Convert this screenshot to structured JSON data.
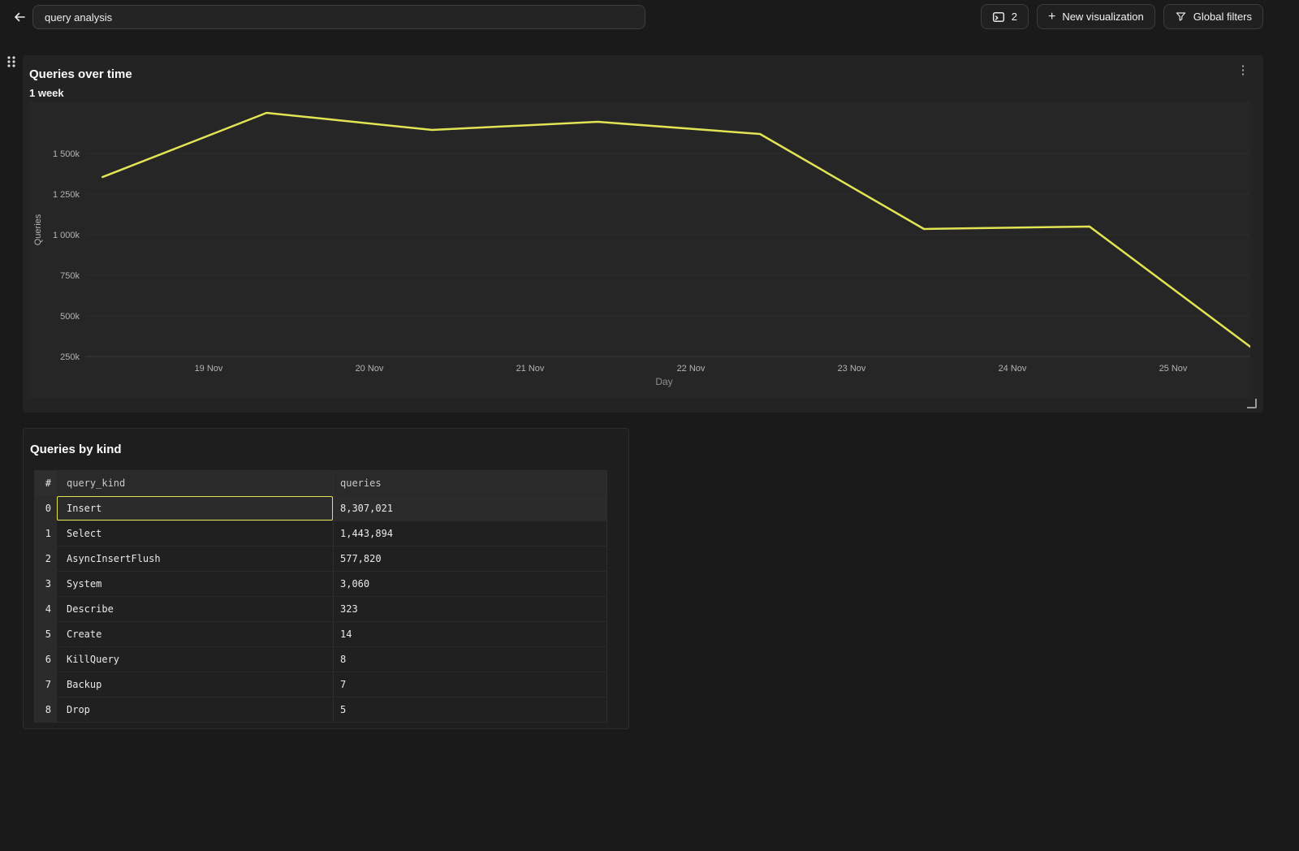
{
  "topbar": {
    "search_value": "query analysis",
    "panel_count": "2",
    "new_visualization_label": "New visualization",
    "global_filters_label": "Global filters"
  },
  "chart_panel": {
    "title": "Queries over time",
    "subtitle": "1 week"
  },
  "chart_data": {
    "type": "line",
    "title": "Queries over time",
    "subtitle": "1 week",
    "xlabel": "Day",
    "ylabel": "Queries",
    "x_tick_labels": [
      "19 Nov",
      "20 Nov",
      "21 Nov",
      "22 Nov",
      "23 Nov",
      "24 Nov",
      "25 Nov"
    ],
    "y_tick_labels": [
      "1 500k",
      "1 250k",
      "1 000k",
      "750k",
      "500k",
      "250k"
    ],
    "y_tick_values_k": [
      1500,
      1250,
      1000,
      750,
      500,
      250
    ],
    "grid": "horizontal",
    "legend": "none",
    "series": [
      {
        "name": "Queries",
        "color": "#e2e454",
        "x_days_from_19nov": [
          -0.66,
          0.36,
          1.39,
          2.42,
          3.43,
          4.45,
          5.48,
          6.48
        ],
        "values_k_queries": [
          1355,
          1750,
          1645,
          1695,
          1620,
          1035,
          1050,
          310
        ]
      }
    ]
  },
  "table_panel": {
    "title": "Queries by kind",
    "columns": [
      "#",
      "query_kind",
      "queries"
    ],
    "rows": [
      {
        "index": "0",
        "query_kind": "Insert",
        "queries": "8,307,021"
      },
      {
        "index": "1",
        "query_kind": "Select",
        "queries": "1,443,894"
      },
      {
        "index": "2",
        "query_kind": "AsyncInsertFlush",
        "queries": "577,820"
      },
      {
        "index": "3",
        "query_kind": "System",
        "queries": "3,060"
      },
      {
        "index": "4",
        "query_kind": "Describe",
        "queries": "323"
      },
      {
        "index": "5",
        "query_kind": "Create",
        "queries": "14"
      },
      {
        "index": "6",
        "query_kind": "KillQuery",
        "queries": "8"
      },
      {
        "index": "7",
        "query_kind": "Backup",
        "queries": "7"
      },
      {
        "index": "8",
        "query_kind": "Drop",
        "queries": "5"
      }
    ],
    "selected_cell": {
      "row_index": 0,
      "column": "query_kind"
    }
  },
  "colors": {
    "accent_yellow": "#e2e454",
    "selection_border": "#e2e454"
  }
}
